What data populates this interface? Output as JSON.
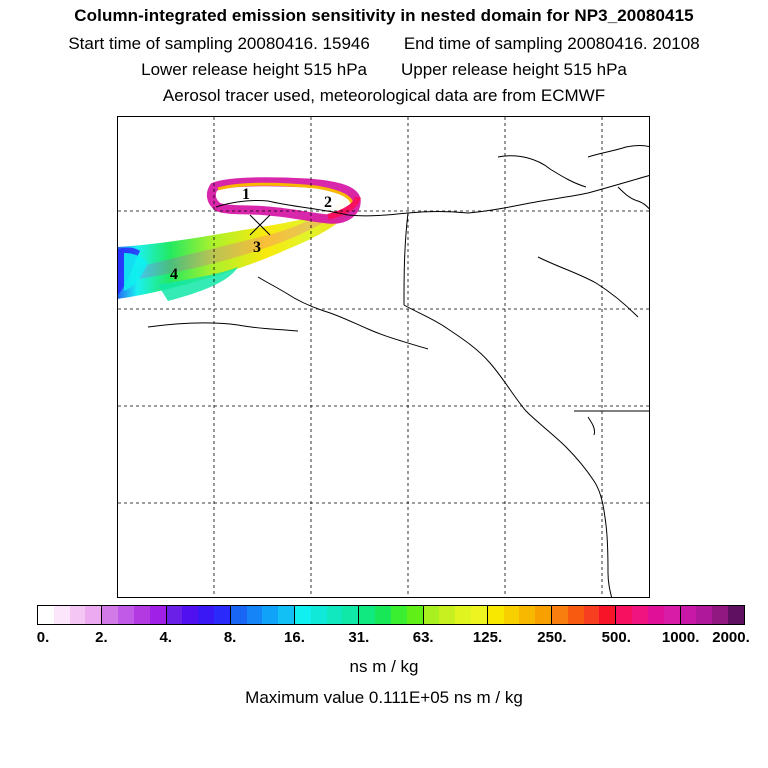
{
  "title": "Column-integrated emission sensitivity in nested domain for NP3_20080415",
  "header": {
    "start_label": "Start time of sampling 20080416. 15946",
    "end_label": "End time of sampling 20080416. 20108",
    "lower_label": "Lower release height  515 hPa",
    "upper_label": "Upper release height  515 hPa",
    "note": "Aerosol tracer used, meteorological data are from ECMWF"
  },
  "map": {
    "markers": [
      "1",
      "2",
      "3",
      "4"
    ],
    "release_symbol": "X"
  },
  "colorbar": {
    "tick_labels": [
      "0.",
      "2.",
      "4.",
      "8.",
      "16.",
      "31.",
      "63.",
      "125.",
      "250.",
      "500.",
      "1000.",
      "2000."
    ],
    "colors": [
      "#ffffff",
      "#fbe6fb",
      "#f3c6f3",
      "#ecaaf0",
      "#d27ae8",
      "#c25ae8",
      "#b23ae0",
      "#a020e8",
      "#6a20e6",
      "#5010f0",
      "#3a18f6",
      "#2a2afa",
      "#1a66f4",
      "#1484f6",
      "#10a2f8",
      "#12c0f6",
      "#10f0f0",
      "#10e8d8",
      "#12e8c0",
      "#10e8a8",
      "#10e880",
      "#18e858",
      "#3aee30",
      "#60f018",
      "#a8f020",
      "#c8f020",
      "#e0f420",
      "#eef420",
      "#f8e800",
      "#f8d000",
      "#f8b800",
      "#f8a000",
      "#f87e10",
      "#f85a10",
      "#f83e20",
      "#f81428",
      "#f81060",
      "#f01480",
      "#e01098",
      "#d81ca8",
      "#c818a8",
      "#b0189c",
      "#901880",
      "#601060"
    ],
    "unit": "ns m / kg"
  },
  "max_value_text": "Maximum value  0.111E+05 ns m / kg"
}
